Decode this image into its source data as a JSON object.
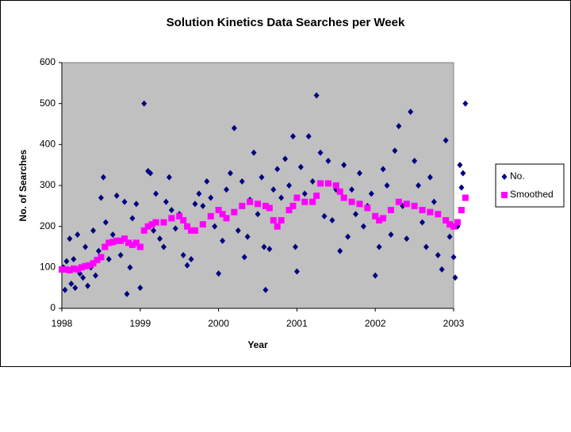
{
  "chart_data": {
    "type": "scatter",
    "title": "Solution Kinetics Data Searches per Week",
    "x_label": "Year",
    "y_label": "No. of Searches",
    "xlim": [
      1998,
      2003.15
    ],
    "xticks": [
      1998,
      1999,
      2000,
      2001,
      2002,
      2003
    ],
    "ylim": [
      0,
      600
    ],
    "yticks": [
      0,
      100,
      200,
      300,
      400,
      500,
      600
    ],
    "legend": "right",
    "series": [
      {
        "name": "No.",
        "color": "#000080",
        "marker": "diamond",
        "x": [
          1998.02,
          1998.04,
          1998.06,
          1998.1,
          1998.12,
          1998.15,
          1998.17,
          1998.2,
          1998.23,
          1998.27,
          1998.3,
          1998.33,
          1998.37,
          1998.4,
          1998.43,
          1998.47,
          1998.5,
          1998.53,
          1998.56,
          1998.6,
          1998.65,
          1998.7,
          1998.75,
          1998.8,
          1998.83,
          1998.87,
          1998.9,
          1998.95,
          1999.0,
          1999.05,
          1999.1,
          1999.13,
          1999.17,
          1999.2,
          1999.25,
          1999.3,
          1999.33,
          1999.37,
          1999.4,
          1999.45,
          1999.5,
          1999.55,
          1999.6,
          1999.65,
          1999.7,
          1999.75,
          1999.8,
          1999.85,
          1999.9,
          1999.95,
          2000.0,
          2000.05,
          2000.1,
          2000.15,
          2000.2,
          2000.25,
          2000.3,
          2000.33,
          2000.37,
          2000.4,
          2000.45,
          2000.5,
          2000.55,
          2000.58,
          2000.6,
          2000.65,
          2000.7,
          2000.75,
          2000.8,
          2000.85,
          2000.9,
          2000.95,
          2000.98,
          2001.0,
          2001.05,
          2001.1,
          2001.15,
          2001.2,
          2001.25,
          2001.3,
          2001.35,
          2001.4,
          2001.45,
          2001.5,
          2001.55,
          2001.6,
          2001.65,
          2001.7,
          2001.75,
          2001.8,
          2001.85,
          2001.9,
          2001.95,
          2002.0,
          2002.05,
          2002.1,
          2002.15,
          2002.2,
          2002.25,
          2002.3,
          2002.35,
          2002.4,
          2002.45,
          2002.5,
          2002.55,
          2002.6,
          2002.65,
          2002.7,
          2002.75,
          2002.8,
          2002.85,
          2002.9,
          2002.95,
          2003.0,
          2003.02,
          2003.05,
          2003.08,
          2003.1,
          2003.12,
          2003.15
        ],
        "values": [
          100,
          45,
          115,
          170,
          60,
          120,
          50,
          180,
          85,
          75,
          150,
          55,
          100,
          190,
          80,
          140,
          270,
          320,
          210,
          120,
          180,
          275,
          130,
          260,
          35,
          100,
          220,
          255,
          50,
          500,
          335,
          330,
          190,
          280,
          170,
          150,
          260,
          320,
          240,
          195,
          230,
          130,
          105,
          120,
          255,
          280,
          250,
          310,
          270,
          200,
          85,
          165,
          290,
          330,
          440,
          190,
          310,
          125,
          175,
          265,
          380,
          230,
          320,
          150,
          45,
          145,
          290,
          340,
          270,
          365,
          300,
          420,
          150,
          90,
          345,
          280,
          420,
          310,
          520,
          380,
          225,
          360,
          215,
          290,
          140,
          350,
          175,
          290,
          230,
          330,
          200,
          250,
          280,
          80,
          150,
          340,
          300,
          180,
          385,
          445,
          250,
          170,
          480,
          360,
          300,
          210,
          150,
          320,
          260,
          130,
          95,
          410,
          175,
          125,
          75,
          200,
          350,
          295,
          330,
          500
        ]
      },
      {
        "name": "Smoothed",
        "color": "#ff00ff",
        "marker": "square",
        "x": [
          1998.0,
          1998.05,
          1998.1,
          1998.15,
          1998.2,
          1998.25,
          1998.3,
          1998.35,
          1998.4,
          1998.45,
          1998.5,
          1998.55,
          1998.6,
          1998.65,
          1998.7,
          1998.75,
          1998.8,
          1998.85,
          1998.9,
          1998.95,
          1999.0,
          1999.05,
          1999.1,
          1999.15,
          1999.2,
          1999.3,
          1999.4,
          1999.5,
          1999.55,
          1999.6,
          1999.65,
          1999.7,
          1999.8,
          1999.9,
          2000.0,
          2000.05,
          2000.1,
          2000.2,
          2000.3,
          2000.4,
          2000.5,
          2000.6,
          2000.65,
          2000.7,
          2000.75,
          2000.8,
          2000.9,
          2000.95,
          2001.0,
          2001.1,
          2001.2,
          2001.25,
          2001.3,
          2001.4,
          2001.5,
          2001.55,
          2001.6,
          2001.7,
          2001.8,
          2001.9,
          2002.0,
          2002.05,
          2002.1,
          2002.2,
          2002.3,
          2002.4,
          2002.5,
          2002.6,
          2002.7,
          2002.8,
          2002.9,
          2002.95,
          2003.0,
          2003.05,
          2003.1,
          2003.15
        ],
        "values": [
          95,
          95,
          93,
          97,
          95,
          100,
          103,
          105,
          110,
          118,
          125,
          150,
          160,
          162,
          165,
          165,
          170,
          160,
          155,
          160,
          150,
          190,
          200,
          205,
          210,
          210,
          220,
          225,
          215,
          200,
          190,
          190,
          205,
          225,
          240,
          230,
          220,
          235,
          250,
          260,
          255,
          250,
          245,
          215,
          200,
          215,
          240,
          250,
          270,
          260,
          260,
          275,
          305,
          305,
          300,
          285,
          270,
          260,
          255,
          245,
          225,
          215,
          220,
          240,
          260,
          255,
          250,
          240,
          235,
          230,
          215,
          205,
          200,
          210,
          240,
          270
        ]
      }
    ]
  }
}
